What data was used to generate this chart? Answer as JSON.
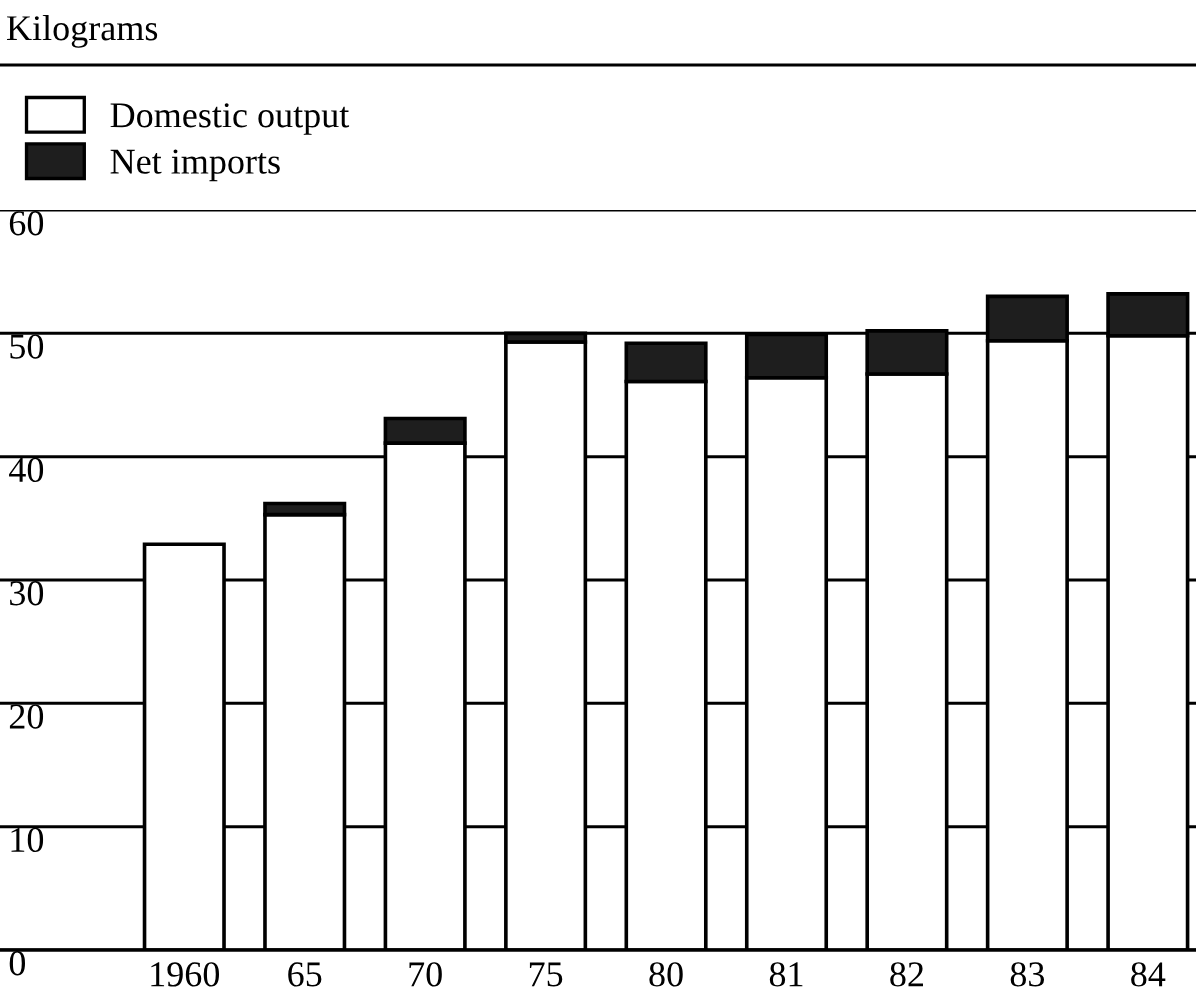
{
  "chart_data": {
    "type": "bar",
    "stacked": true,
    "ylabel": "Kilograms",
    "categories": [
      "1960",
      "65",
      "70",
      "75",
      "80",
      "81",
      "82",
      "83",
      "84"
    ],
    "series": [
      {
        "name": "Domestic output",
        "color": "#ffffff",
        "values": [
          32.9,
          35.3,
          41.1,
          49.3,
          46.1,
          46.4,
          46.7,
          49.4,
          49.8
        ]
      },
      {
        "name": "Net imports",
        "color": "#1e1e1e",
        "values": [
          null,
          0.9,
          2.0,
          0.7,
          3.1,
          3.5,
          3.5,
          3.6,
          3.4
        ]
      }
    ],
    "ylim": [
      0,
      60
    ],
    "yticks": [
      0,
      10,
      20,
      30,
      40,
      50,
      60
    ],
    "grid": "y",
    "legend": "top left"
  }
}
